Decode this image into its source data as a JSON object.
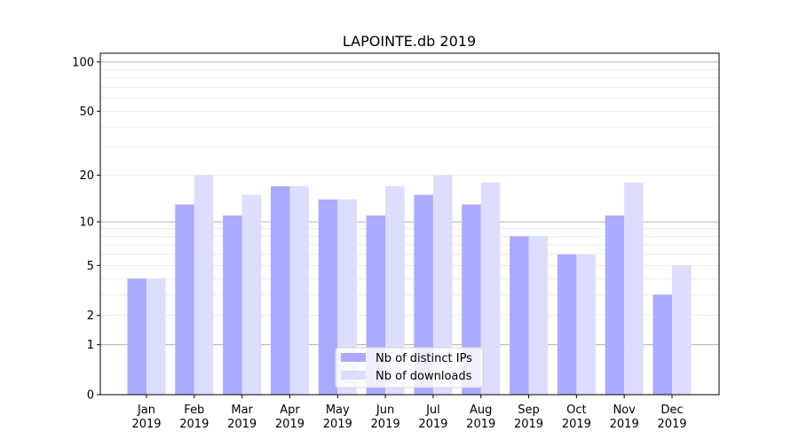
{
  "chart_data": {
    "type": "bar",
    "title": "LAPOINTE.db 2019",
    "xlabel": "",
    "ylabel": "",
    "yscale": "log10(y+1)",
    "ylim": [
      0,
      113
    ],
    "yticks": [
      0,
      1,
      2,
      5,
      10,
      20,
      50,
      100
    ],
    "ytick_labels": [
      "0",
      "1",
      "2",
      "5",
      "10",
      "20",
      "50",
      "100"
    ],
    "grid": true,
    "legend_position": "lower center",
    "categories": [
      "Jan\n2019",
      "Feb\n2019",
      "Mar\n2019",
      "Apr\n2019",
      "May\n2019",
      "Jun\n2019",
      "Jul\n2019",
      "Aug\n2019",
      "Sep\n2019",
      "Oct\n2019",
      "Nov\n2019",
      "Dec\n2019"
    ],
    "series": [
      {
        "name": "Nb of distinct IPs",
        "color": "#aaaaff",
        "values": [
          4,
          13,
          11,
          17,
          14,
          11,
          15,
          13,
          8,
          6,
          11,
          3
        ]
      },
      {
        "name": "Nb of downloads",
        "color": "#ddddff",
        "values": [
          4,
          20,
          15,
          17,
          14,
          17,
          20,
          18,
          8,
          6,
          18,
          5
        ]
      }
    ]
  }
}
